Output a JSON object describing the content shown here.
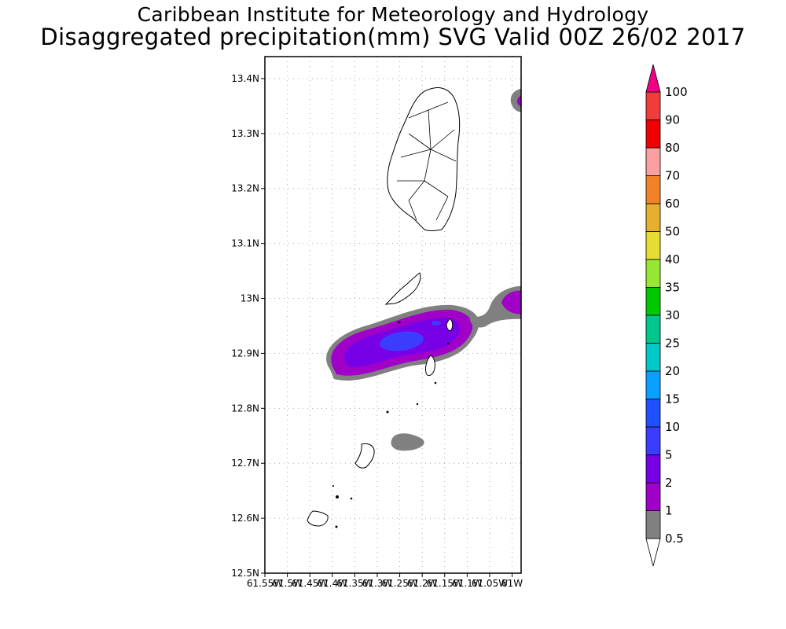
{
  "header": {
    "title_line1": "Caribbean Institute for Meteorology and Hydrology",
    "title_line2": "Disaggregated precipitation(mm) SVG Valid 00Z 26/02 2017"
  },
  "map": {
    "lat_ticks": [
      "13.4N",
      "13.3N",
      "13.2N",
      "13.1N",
      "13N",
      "12.9N",
      "12.8N",
      "12.7N",
      "12.6N",
      "12.5N"
    ],
    "lon_ticks": [
      "61.55W",
      "61.5W",
      "61.45W",
      "61.4W",
      "61.35W",
      "61.3W",
      "61.25W",
      "61.2W",
      "61.15W",
      "61.1W",
      "61.05W",
      "61W"
    ],
    "lat_range": [
      12.5,
      13.44
    ],
    "lon_range": [
      -61.55,
      -60.98
    ],
    "gridlines": true
  },
  "colorbar": {
    "levels": [
      "0.5",
      "1",
      "2",
      "5",
      "10",
      "15",
      "20",
      "25",
      "30",
      "35",
      "40",
      "50",
      "60",
      "70",
      "80",
      "90",
      "100"
    ],
    "colors": [
      "#808080",
      "#a000c8",
      "#7800e6",
      "#3c3cff",
      "#1e50ff",
      "#0aa0ff",
      "#00c8c8",
      "#00c88c",
      "#00c800",
      "#96e632",
      "#e6dc32",
      "#e6af2d",
      "#f08228",
      "#faa0a0",
      "#f00000",
      "#f03c3c",
      "#f00082"
    ],
    "under_color": "#ffffff",
    "over_color": "#f00082"
  },
  "precip_areas": [
    {
      "name": "east-edge-north",
      "min_mm": 0.5
    },
    {
      "name": "main-band",
      "min_mm": 5
    },
    {
      "name": "east-edge-mid",
      "min_mm": 2
    },
    {
      "name": "south-patch",
      "min_mm": 0.5
    }
  ]
}
